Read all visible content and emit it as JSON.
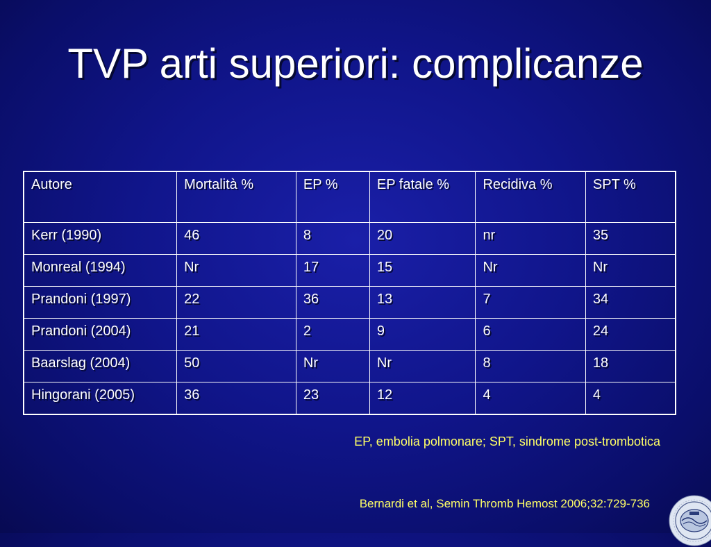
{
  "slide": {
    "title": "TVP arti superiori: complicanze",
    "footnote": "EP, embolia polmonare; SPT, sindrome post-trombotica",
    "reference": "Bernardi et al, Semin Thromb Hemost 2006;32:729-736",
    "logo_icon": "society-seal-icon"
  },
  "table": {
    "headers": [
      "Autore",
      "Mortalità %",
      "EP %",
      "EP fatale %",
      "Recidiva %",
      "SPT %"
    ],
    "rows": [
      [
        "Kerr (1990)",
        "46",
        "8",
        "20",
        "nr",
        "35"
      ],
      [
        "Monreal (1994)",
        "Nr",
        "17",
        "15",
        "Nr",
        "Nr"
      ],
      [
        "Prandoni (1997)",
        "22",
        "36",
        "13",
        "7",
        "34"
      ],
      [
        "Prandoni (2004)",
        "21",
        "2",
        "9",
        "6",
        "24"
      ],
      [
        "Baarslag (2004)",
        "50",
        "Nr",
        "Nr",
        "8",
        "18"
      ],
      [
        "Hingorani (2005)",
        "36",
        "23",
        "12",
        "4",
        "4"
      ]
    ]
  },
  "colors": {
    "background": "#10158a",
    "text": "#ffffff",
    "accent": "#ffff66"
  }
}
